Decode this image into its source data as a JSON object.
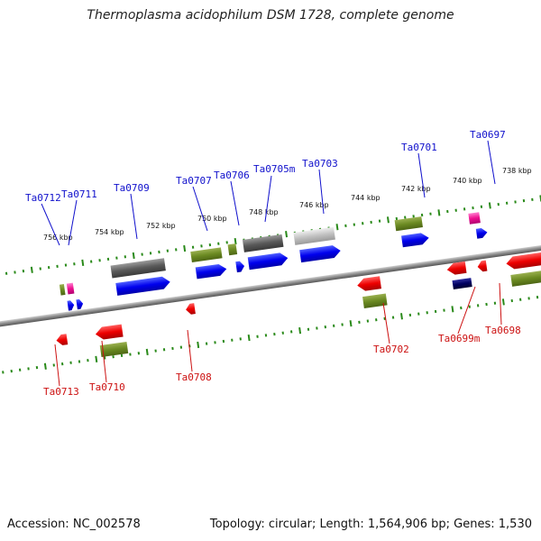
{
  "title": "Thermoplasma acidophilum DSM 1728, complete genome",
  "footer": {
    "accession": "Accession: NC_002578",
    "topology": "Topology: circular; Length: 1,564,906 bp; Genes: 1,530"
  },
  "colors": {
    "top_label": "#1010cc",
    "bottom_label": "#cc1010",
    "tick": "#2a8a1a",
    "backbone": "#888888"
  },
  "kbp_marks": [
    "756 kbp",
    "754 kbp",
    "752 kbp",
    "750 kbp",
    "748 kbp",
    "746 kbp",
    "744 kbp",
    "742 kbp",
    "740 kbp",
    "738 kbp"
  ],
  "genes_top": [
    "Ta0712",
    "Ta0711",
    "Ta0709",
    "Ta0707",
    "Ta0706",
    "Ta0705m",
    "Ta0703",
    "Ta0701",
    "Ta0697"
  ],
  "genes_bottom": [
    "Ta0713",
    "Ta0710",
    "Ta0708",
    "Ta0702",
    "Ta0699m",
    "Ta0698"
  ]
}
